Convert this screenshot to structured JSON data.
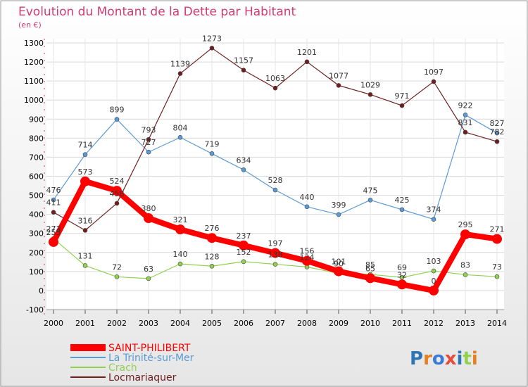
{
  "chart_data": {
    "type": "line",
    "title": "Evolution du Montant de la Dette par Habitant",
    "subtitle": "(en €)",
    "x": [
      "2000",
      "2001",
      "2002",
      "2003",
      "2004",
      "2005",
      "2006",
      "2007",
      "2008",
      "2009",
      "2010",
      "2011",
      "2012",
      "2013",
      "2014"
    ],
    "ylim": [
      -100,
      1300
    ],
    "yticks": [
      "-100",
      "0",
      "100",
      "200",
      "300",
      "400",
      "500",
      "600",
      "700",
      "800",
      "900",
      "1000",
      "1100",
      "1200",
      "1300"
    ],
    "grid": true,
    "legend_position": "bottom-left",
    "series": [
      {
        "name": "SAINT-PHILIBERT",
        "color": "#ff0000",
        "values": [
          255,
          573,
          524,
          380,
          321,
          276,
          237,
          197,
          156,
          101,
          65,
          32,
          0,
          295,
          271
        ]
      },
      {
        "name": "La Trinité-sur-Mer",
        "color": "#5b9bd5",
        "values": [
          476,
          714,
          899,
          727,
          804,
          719,
          634,
          528,
          440,
          399,
          475,
          425,
          374,
          922,
          827
        ]
      },
      {
        "name": "Crach",
        "color": "#92d050",
        "values": [
          273,
          131,
          72,
          63,
          140,
          128,
          152,
          138,
          124,
          90,
          85,
          69,
          103,
          83,
          73
        ]
      },
      {
        "name": "Locmariaquer",
        "color": "#6e1e1e",
        "values": [
          411,
          316,
          458,
          793,
          1139,
          1273,
          1157,
          1063,
          1201,
          1077,
          1029,
          971,
          1097,
          831,
          782
        ]
      }
    ]
  },
  "logo": {
    "text": "Proxiti"
  }
}
